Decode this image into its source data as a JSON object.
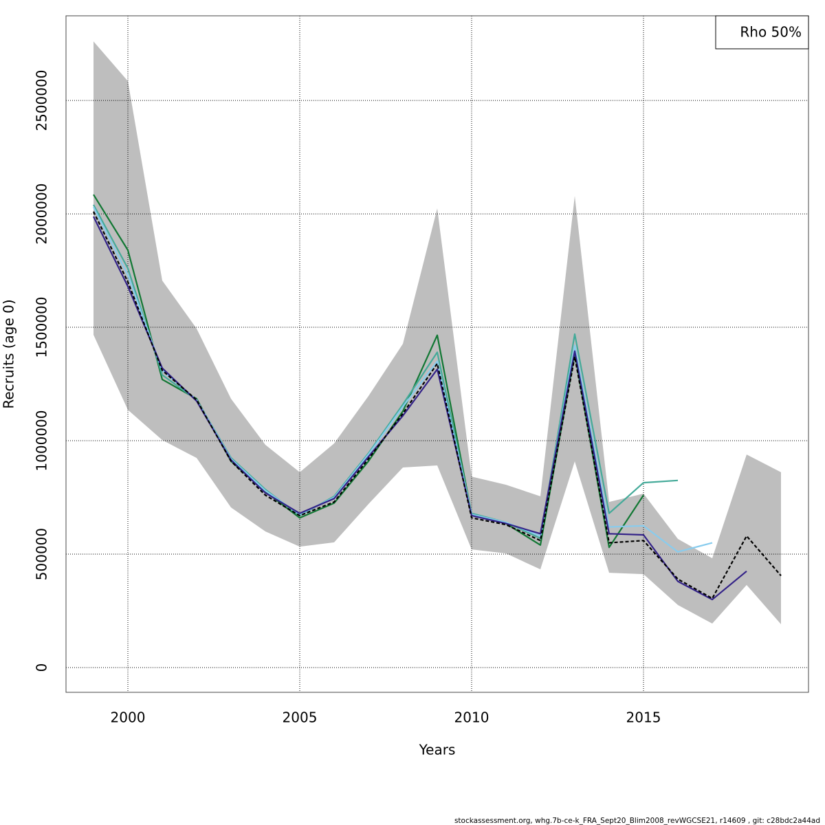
{
  "chart_data": {
    "type": "line",
    "x_label": "Years",
    "y_label": "Recruits (age 0)",
    "legend_text": "Rho 50%",
    "footer": "stockassessment.org, whg.7b-ce-k_FRA_Sept20_Blim2008_revWGCSE21, r14609 , git: c28bdc2a44ad",
    "grid": true,
    "xlim": [
      1998.2,
      2019.8
    ],
    "xticks": [
      2000,
      2005,
      2010,
      2015
    ],
    "ylim": [
      -109000,
      2873000
    ],
    "yticks": [
      0,
      500000,
      1000000,
      1500000,
      2000000,
      2500000
    ],
    "x": [
      1999,
      2000,
      2001,
      2002,
      2003,
      2004,
      2005,
      2006,
      2007,
      2008,
      2009,
      2010,
      2011,
      2012,
      2013,
      2014,
      2015,
      2016,
      2017,
      2018,
      2019
    ],
    "band": {
      "color": "#bebebe",
      "upper": [
        2760000,
        2585000,
        1706000,
        1494000,
        1185000,
        982000,
        861000,
        988000,
        1197000,
        1427000,
        2024000,
        842000,
        806000,
        755000,
        2079000,
        730000,
        767000,
        567000,
        482000,
        939000,
        861000
      ],
      "lower": [
        1467000,
        1136000,
        1003000,
        924000,
        706000,
        600000,
        533000,
        552000,
        721000,
        882000,
        891000,
        521000,
        503000,
        433000,
        909000,
        418000,
        412000,
        276000,
        194000,
        364000,
        191000
      ]
    },
    "series": [
      {
        "color": "#117733",
        "values": [
          2085000,
          1840000,
          1270000,
          1185000,
          910000,
          775000,
          660000,
          725000,
          910000,
          1130000,
          1465000,
          675000,
          635000,
          540000,
          1385000,
          530000,
          760000,
          null,
          null,
          null,
          null
        ]
      },
      {
        "color": "#44aa99",
        "values": [
          2040000,
          1760000,
          1290000,
          1180000,
          925000,
          785000,
          670000,
          755000,
          945000,
          1160000,
          1390000,
          680000,
          640000,
          570000,
          1470000,
          680000,
          815000,
          825000,
          null,
          null,
          null
        ]
      },
      {
        "color": "#88ccee",
        "values": [
          2030000,
          1730000,
          1310000,
          1180000,
          920000,
          780000,
          675000,
          750000,
          940000,
          1150000,
          1350000,
          675000,
          640000,
          580000,
          1420000,
          620000,
          625000,
          510000,
          550000,
          null,
          null
        ]
      },
      {
        "color": "#332288",
        "values": [
          1988000,
          1680000,
          1320000,
          1175000,
          915000,
          770000,
          680000,
          745000,
          930000,
          1110000,
          1315000,
          670000,
          635000,
          590000,
          1395000,
          590000,
          585000,
          380000,
          300000,
          425000,
          null
        ]
      },
      {
        "color": "#000000",
        "dashed": true,
        "values": [
          2010000,
          1700000,
          1310000,
          1180000,
          910000,
          760000,
          670000,
          730000,
          920000,
          1120000,
          1340000,
          660000,
          630000,
          560000,
          1370000,
          550000,
          560000,
          390000,
          305000,
          580000,
          405000
        ]
      }
    ]
  }
}
